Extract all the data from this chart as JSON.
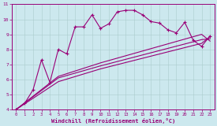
{
  "xlabel": "Windchill (Refroidissement éolien,°C)",
  "background_color": "#cce8ee",
  "line_color": "#990077",
  "xlim": [
    -0.5,
    23.5
  ],
  "ylim": [
    4,
    11
  ],
  "xticks": [
    0,
    1,
    2,
    3,
    4,
    5,
    6,
    7,
    8,
    9,
    10,
    11,
    12,
    13,
    14,
    15,
    16,
    17,
    18,
    19,
    20,
    21,
    22,
    23
  ],
  "yticks": [
    4,
    5,
    6,
    7,
    8,
    9,
    10,
    11
  ],
  "series1_x": [
    0,
    1,
    2,
    3,
    4,
    5,
    6,
    7,
    8,
    9,
    10,
    11,
    12,
    13,
    14,
    15,
    16,
    17,
    18,
    19,
    20,
    21,
    22,
    23
  ],
  "series1_y": [
    4.0,
    4.4,
    5.3,
    7.3,
    5.8,
    8.0,
    7.7,
    9.5,
    9.5,
    10.3,
    9.4,
    9.7,
    10.5,
    10.6,
    10.6,
    10.3,
    9.85,
    9.75,
    9.3,
    9.1,
    9.8,
    8.6,
    8.2,
    8.9
  ],
  "series2_x": [
    0,
    5,
    10,
    22,
    23
  ],
  "series2_y": [
    4.0,
    6.2,
    7.1,
    9.0,
    8.55
  ],
  "series3_x": [
    0,
    5,
    10,
    22,
    23
  ],
  "series3_y": [
    4.0,
    6.1,
    6.9,
    8.65,
    8.7
  ],
  "series4_x": [
    0,
    5,
    10,
    22,
    23
  ],
  "series4_y": [
    4.0,
    5.85,
    6.7,
    8.4,
    8.85
  ]
}
